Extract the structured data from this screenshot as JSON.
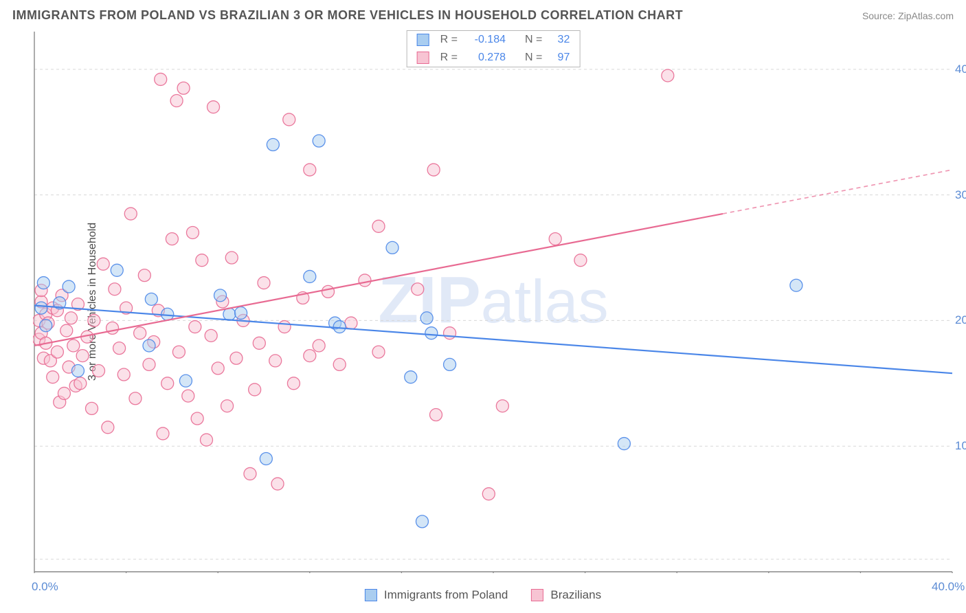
{
  "header": {
    "title": "IMMIGRANTS FROM POLAND VS BRAZILIAN 3 OR MORE VEHICLES IN HOUSEHOLD CORRELATION CHART",
    "source": "Source: ZipAtlas.com"
  },
  "y_axis_label": "3 or more Vehicles in Household",
  "watermark": "ZIPatlas",
  "chart": {
    "type": "scatter-with-regression",
    "background_color": "#ffffff",
    "plot_border_color": "#888888",
    "grid_color": "#d8d8d8",
    "grid_dash": "4,4",
    "axis_tick_color": "#888888",
    "tick_label_color": "#5b8bd4",
    "tick_label_fontsize": 17,
    "xlim": [
      0,
      40
    ],
    "ylim": [
      0,
      43
    ],
    "x_ticks": [
      0,
      4,
      8,
      12,
      16,
      20,
      24,
      28,
      32,
      36,
      40
    ],
    "x_tick_labels": [
      {
        "pos": 0,
        "text": "0.0%"
      },
      {
        "pos": 40,
        "text": "40.0%"
      }
    ],
    "y_gridlines": [
      1,
      10,
      20,
      30,
      40
    ],
    "y_tick_labels": [
      {
        "pos": 10,
        "text": "10.0%"
      },
      {
        "pos": 20,
        "text": "20.0%"
      },
      {
        "pos": 30,
        "text": "30.0%"
      },
      {
        "pos": 40,
        "text": "40.0%"
      }
    ],
    "marker_radius": 9,
    "marker_opacity": 0.5,
    "marker_stroke_width": 1.3,
    "line_width": 2.2,
    "series": [
      {
        "name": "Immigrants from Poland",
        "color_fill": "#a9cdf0",
        "color_stroke": "#4a86e8",
        "regression": {
          "x1": 0,
          "y1": 21.2,
          "x2": 40,
          "y2": 15.8,
          "dashed_from_x": null
        },
        "stats": {
          "R": "-0.184",
          "N": "32"
        },
        "points": [
          [
            0.3,
            21.0
          ],
          [
            0.4,
            23.0
          ],
          [
            0.5,
            19.6
          ],
          [
            1.1,
            21.4
          ],
          [
            1.5,
            22.7
          ],
          [
            1.9,
            16.0
          ],
          [
            3.6,
            24.0
          ],
          [
            5.0,
            18.0
          ],
          [
            5.1,
            21.7
          ],
          [
            5.8,
            20.5
          ],
          [
            6.6,
            15.2
          ],
          [
            8.1,
            22.0
          ],
          [
            8.5,
            20.5
          ],
          [
            9.0,
            20.6
          ],
          [
            10.1,
            9.0
          ],
          [
            10.4,
            34.0
          ],
          [
            12.0,
            23.5
          ],
          [
            12.4,
            34.3
          ],
          [
            13.1,
            19.8
          ],
          [
            13.3,
            19.5
          ],
          [
            15.6,
            25.8
          ],
          [
            16.4,
            15.5
          ],
          [
            17.1,
            20.2
          ],
          [
            17.3,
            19.0
          ],
          [
            16.9,
            4.0
          ],
          [
            18.1,
            16.5
          ],
          [
            25.7,
            10.2
          ],
          [
            33.2,
            22.8
          ]
        ]
      },
      {
        "name": "Brazilians",
        "color_fill": "#f7c4d3",
        "color_stroke": "#e86a92",
        "regression": {
          "x1": 0,
          "y1": 18.0,
          "x2": 40,
          "y2": 32.0,
          "dashed_from_x": 30
        },
        "stats": {
          "R": "0.278",
          "N": "97"
        },
        "points": [
          [
            0.2,
            18.5
          ],
          [
            0.2,
            20.0
          ],
          [
            0.3,
            21.5
          ],
          [
            0.3,
            22.4
          ],
          [
            0.3,
            19.0
          ],
          [
            0.4,
            17.0
          ],
          [
            0.5,
            18.2
          ],
          [
            0.5,
            20.5
          ],
          [
            0.6,
            19.8
          ],
          [
            0.7,
            16.8
          ],
          [
            0.8,
            21.0
          ],
          [
            0.8,
            15.5
          ],
          [
            1.0,
            17.5
          ],
          [
            1.0,
            20.8
          ],
          [
            1.1,
            13.5
          ],
          [
            1.2,
            22.0
          ],
          [
            1.3,
            14.2
          ],
          [
            1.4,
            19.2
          ],
          [
            1.5,
            16.3
          ],
          [
            1.6,
            20.2
          ],
          [
            1.7,
            18.0
          ],
          [
            1.8,
            14.8
          ],
          [
            1.9,
            21.3
          ],
          [
            2.0,
            15.0
          ],
          [
            2.1,
            17.2
          ],
          [
            2.3,
            18.7
          ],
          [
            2.5,
            13.0
          ],
          [
            2.6,
            20.0
          ],
          [
            2.8,
            16.0
          ],
          [
            3.0,
            24.5
          ],
          [
            3.2,
            11.5
          ],
          [
            3.4,
            19.4
          ],
          [
            3.5,
            22.5
          ],
          [
            3.7,
            17.8
          ],
          [
            3.9,
            15.7
          ],
          [
            4.0,
            21.0
          ],
          [
            4.2,
            28.5
          ],
          [
            4.4,
            13.8
          ],
          [
            4.6,
            19.0
          ],
          [
            4.8,
            23.6
          ],
          [
            5.0,
            16.5
          ],
          [
            5.2,
            18.3
          ],
          [
            5.4,
            20.8
          ],
          [
            5.6,
            11.0
          ],
          [
            5.5,
            39.2
          ],
          [
            5.8,
            15.0
          ],
          [
            6.0,
            26.5
          ],
          [
            6.2,
            37.5
          ],
          [
            6.3,
            17.5
          ],
          [
            6.5,
            38.5
          ],
          [
            6.7,
            14.0
          ],
          [
            6.9,
            27.0
          ],
          [
            7.0,
            19.5
          ],
          [
            7.1,
            12.2
          ],
          [
            7.3,
            24.8
          ],
          [
            7.5,
            10.5
          ],
          [
            7.7,
            18.8
          ],
          [
            7.8,
            37.0
          ],
          [
            8.0,
            16.2
          ],
          [
            8.2,
            21.5
          ],
          [
            8.4,
            13.2
          ],
          [
            8.6,
            25.0
          ],
          [
            8.8,
            17.0
          ],
          [
            9.1,
            20.0
          ],
          [
            9.4,
            7.8
          ],
          [
            9.6,
            14.5
          ],
          [
            9.8,
            18.2
          ],
          [
            10.0,
            23.0
          ],
          [
            10.5,
            16.8
          ],
          [
            10.6,
            7.0
          ],
          [
            10.9,
            19.5
          ],
          [
            11.1,
            36.0
          ],
          [
            11.3,
            15.0
          ],
          [
            11.7,
            21.8
          ],
          [
            12.0,
            32.0
          ],
          [
            12.0,
            17.2
          ],
          [
            12.4,
            18.0
          ],
          [
            12.8,
            22.3
          ],
          [
            13.3,
            16.5
          ],
          [
            13.8,
            19.8
          ],
          [
            14.4,
            23.2
          ],
          [
            15.0,
            17.5
          ],
          [
            15.0,
            27.5
          ],
          [
            16.7,
            22.5
          ],
          [
            17.4,
            32.0
          ],
          [
            17.5,
            12.5
          ],
          [
            18.1,
            19.0
          ],
          [
            19.8,
            6.2
          ],
          [
            20.4,
            13.2
          ],
          [
            22.7,
            26.5
          ],
          [
            23.8,
            24.8
          ],
          [
            27.6,
            39.5
          ]
        ]
      }
    ]
  },
  "legend_top": {
    "rows": [
      {
        "swatch_fill": "#a9cdf0",
        "swatch_stroke": "#4a86e8",
        "r": "-0.184",
        "n": "32"
      },
      {
        "swatch_fill": "#f7c4d3",
        "swatch_stroke": "#e86a92",
        "r": "0.278",
        "n": "97"
      }
    ],
    "r_label": "R =",
    "n_label": "N ="
  },
  "bottom_legend": {
    "items": [
      {
        "swatch_fill": "#a9cdf0",
        "swatch_stroke": "#4a86e8",
        "label": "Immigrants from Poland"
      },
      {
        "swatch_fill": "#f7c4d3",
        "swatch_stroke": "#e86a92",
        "label": "Brazilians"
      }
    ]
  }
}
